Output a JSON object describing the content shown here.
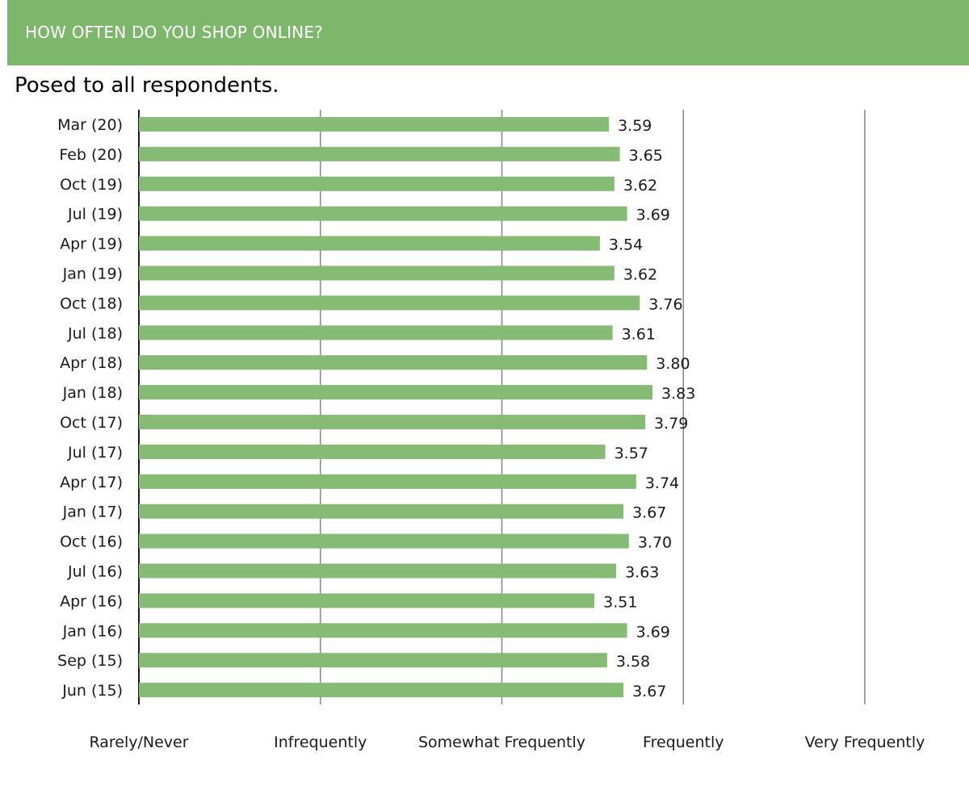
{
  "header": {
    "title": "HOW OFTEN DO YOU SHOP ONLINE?",
    "subtitle": "Posed to all respondents."
  },
  "colors": {
    "header_bg": "#7db76b",
    "bar": "#85bb75",
    "gridline": "#8c8c8c"
  },
  "chart_data": {
    "type": "bar",
    "orientation": "horizontal",
    "title": "HOW OFTEN DO YOU SHOP ONLINE?",
    "subtitle": "Posed to all respondents.",
    "categories": [
      "Mar (20)",
      "Feb (20)",
      "Oct (19)",
      "Jul (19)",
      "Apr (19)",
      "Jan (19)",
      "Oct (18)",
      "Jul (18)",
      "Apr (18)",
      "Jan (18)",
      "Oct (17)",
      "Jul (17)",
      "Apr (17)",
      "Jan (17)",
      "Oct (16)",
      "Jul (16)",
      "Apr (16)",
      "Jan (16)",
      "Sep (15)",
      "Jun (15)"
    ],
    "values": [
      3.59,
      3.65,
      3.62,
      3.69,
      3.54,
      3.62,
      3.76,
      3.61,
      3.8,
      3.83,
      3.79,
      3.57,
      3.74,
      3.67,
      3.7,
      3.63,
      3.51,
      3.69,
      3.58,
      3.67
    ],
    "value_labels": [
      "3.59",
      "3.65",
      "3.62",
      "3.69",
      "3.54",
      "3.62",
      "3.76",
      "3.61",
      "3.80",
      "3.83",
      "3.79",
      "3.57",
      "3.74",
      "3.67",
      "3.70",
      "3.63",
      "3.51",
      "3.69",
      "3.58",
      "3.67"
    ],
    "xlim": [
      1,
      5
    ],
    "x_ticks": [
      1,
      2,
      3,
      4,
      5
    ],
    "x_tick_labels": [
      "Rarely/Never",
      "Infrequently",
      "Somewhat Frequently",
      "Frequently",
      "Very Frequently"
    ],
    "grid": true,
    "legend": "none"
  }
}
